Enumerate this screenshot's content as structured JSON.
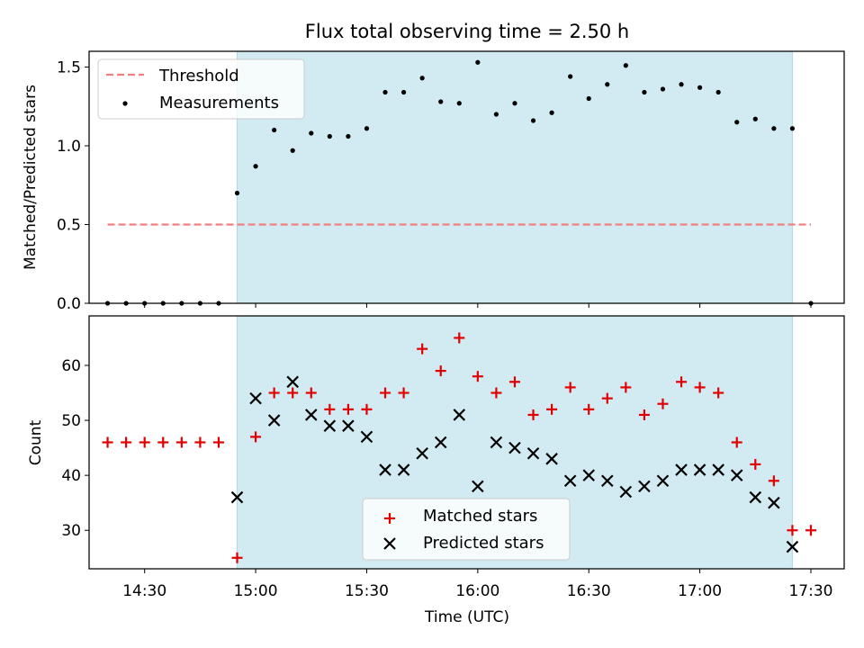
{
  "title": "Flux total observing time = 2.50 h",
  "colors": {
    "span": "#add8e6",
    "threshold": "#f08080",
    "measurements": "#000000",
    "matched": "#e00000",
    "predicted": "#000000"
  },
  "chart_data": [
    {
      "type": "scatter",
      "ylabel": "Matched/Predicted stars",
      "ylim": [
        0,
        1.6
      ],
      "yticks": [
        0.0,
        0.5,
        1.0,
        1.5
      ],
      "yticklabels": [
        "0.0",
        "0.5",
        "1.0",
        "1.5"
      ],
      "shaded_interval": [
        "14:55",
        "17:25"
      ],
      "legend_position": "upper left",
      "threshold": {
        "name": "Threshold",
        "value": 0.5,
        "x_range": [
          "14:20",
          "17:30"
        ],
        "style": "dashed"
      },
      "series": [
        {
          "name": "Measurements",
          "x": [
            "14:20",
            "14:25",
            "14:30",
            "14:35",
            "14:40",
            "14:45",
            "14:50",
            "14:55",
            "15:00",
            "15:05",
            "15:10",
            "15:15",
            "15:20",
            "15:25",
            "15:30",
            "15:35",
            "15:40",
            "15:45",
            "15:50",
            "15:55",
            "16:00",
            "16:05",
            "16:10",
            "16:15",
            "16:20",
            "16:25",
            "16:30",
            "16:35",
            "16:40",
            "16:45",
            "16:50",
            "16:55",
            "17:00",
            "17:05",
            "17:10",
            "17:15",
            "17:20",
            "17:25",
            "17:30"
          ],
          "y": [
            0,
            0,
            0,
            0,
            0,
            0,
            0,
            0.7,
            0.87,
            1.1,
            0.97,
            1.08,
            1.06,
            1.06,
            1.11,
            1.34,
            1.34,
            1.43,
            1.28,
            1.27,
            1.53,
            1.2,
            1.27,
            1.16,
            1.21,
            1.44,
            1.3,
            1.39,
            1.51,
            1.34,
            1.36,
            1.39,
            1.37,
            1.34,
            1.15,
            1.17,
            1.11,
            1.11,
            0
          ]
        }
      ]
    },
    {
      "type": "scatter",
      "xlabel": "Time (UTC)",
      "ylabel": "Count",
      "ylim": [
        23,
        69
      ],
      "yticks": [
        30,
        40,
        50,
        60
      ],
      "yticklabels": [
        "30",
        "40",
        "50",
        "60"
      ],
      "xticks": [
        "14:30",
        "15:00",
        "15:30",
        "16:00",
        "16:30",
        "17:00",
        "17:30"
      ],
      "xlim": [
        "14:15",
        "17:39"
      ],
      "shaded_interval": [
        "14:55",
        "17:25"
      ],
      "legend_position": "lower center",
      "series": [
        {
          "name": "Matched stars",
          "marker": "+",
          "x": [
            "14:20",
            "14:25",
            "14:30",
            "14:35",
            "14:40",
            "14:45",
            "14:50",
            "14:55",
            "15:00",
            "15:05",
            "15:10",
            "15:15",
            "15:20",
            "15:25",
            "15:30",
            "15:35",
            "15:40",
            "15:45",
            "15:50",
            "15:55",
            "16:00",
            "16:05",
            "16:10",
            "16:15",
            "16:20",
            "16:25",
            "16:30",
            "16:35",
            "16:40",
            "16:45",
            "16:50",
            "16:55",
            "17:00",
            "17:05",
            "17:10",
            "17:15",
            "17:20",
            "17:25",
            "17:30"
          ],
          "y": [
            46,
            46,
            46,
            46,
            46,
            46,
            46,
            25,
            47,
            55,
            55,
            55,
            52,
            52,
            52,
            55,
            55,
            63,
            59,
            65,
            58,
            55,
            57,
            51,
            52,
            56,
            52,
            54,
            56,
            51,
            53,
            57,
            56,
            55,
            46,
            42,
            39,
            30,
            30
          ]
        },
        {
          "name": "Predicted stars",
          "marker": "x",
          "x": [
            "14:55",
            "15:00",
            "15:05",
            "15:10",
            "15:15",
            "15:20",
            "15:25",
            "15:30",
            "15:35",
            "15:40",
            "15:45",
            "15:50",
            "15:55",
            "16:00",
            "16:05",
            "16:10",
            "16:15",
            "16:20",
            "16:25",
            "16:30",
            "16:35",
            "16:40",
            "16:45",
            "16:50",
            "16:55",
            "17:00",
            "17:05",
            "17:10",
            "17:15",
            "17:20",
            "17:25"
          ],
          "y": [
            36,
            54,
            50,
            57,
            51,
            49,
            49,
            47,
            41,
            41,
            44,
            46,
            51,
            38,
            46,
            45,
            44,
            43,
            39,
            40,
            39,
            37,
            38,
            39,
            41,
            41,
            41,
            40,
            36,
            35,
            27
          ]
        }
      ]
    }
  ]
}
